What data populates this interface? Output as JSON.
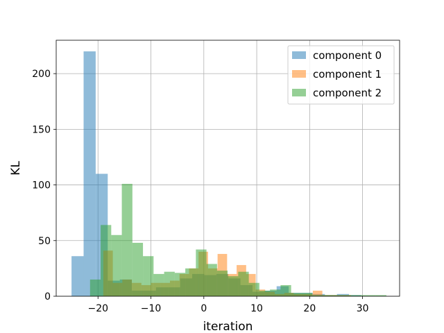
{
  "chart_data": {
    "type": "histogram",
    "title": "",
    "xlabel": "iteration",
    "ylabel": "KL",
    "xlim": [
      -27.9,
      37.0
    ],
    "ylim": [
      0,
      230
    ],
    "xticks": [
      -20,
      -10,
      0,
      10,
      20,
      30
    ],
    "yticks": [
      0,
      50,
      100,
      150,
      200
    ],
    "grid": true,
    "legend": "top-right",
    "alpha": 0.5,
    "series": [
      {
        "name": "component 0",
        "color": "#1f77b4",
        "bin_start": -25.0,
        "bin_width": 2.28,
        "counts": [
          36,
          220,
          110,
          14,
          15,
          5,
          5,
          8,
          8,
          16,
          20,
          19,
          20,
          16,
          10,
          4,
          5,
          9,
          3,
          3,
          2,
          1,
          2,
          1
        ]
      },
      {
        "name": "component 1",
        "color": "#ff7f0e",
        "bin_start": -19.0,
        "bin_width": 1.8,
        "counts": [
          41,
          12,
          15,
          12,
          10,
          12,
          12,
          14,
          20,
          25,
          40,
          25,
          38,
          20,
          28,
          20,
          6,
          4,
          2,
          3,
          2,
          2,
          5,
          1,
          1,
          1
        ]
      },
      {
        "name": "component 2",
        "color": "#2ca02c",
        "bin_start": -21.5,
        "bin_width": 2.0,
        "counts": [
          15,
          64,
          55,
          101,
          48,
          36,
          20,
          22,
          21,
          25,
          42,
          29,
          23,
          18,
          22,
          12,
          5,
          6,
          10,
          3,
          3,
          1,
          1,
          1,
          1,
          1,
          1,
          1
        ]
      }
    ]
  }
}
